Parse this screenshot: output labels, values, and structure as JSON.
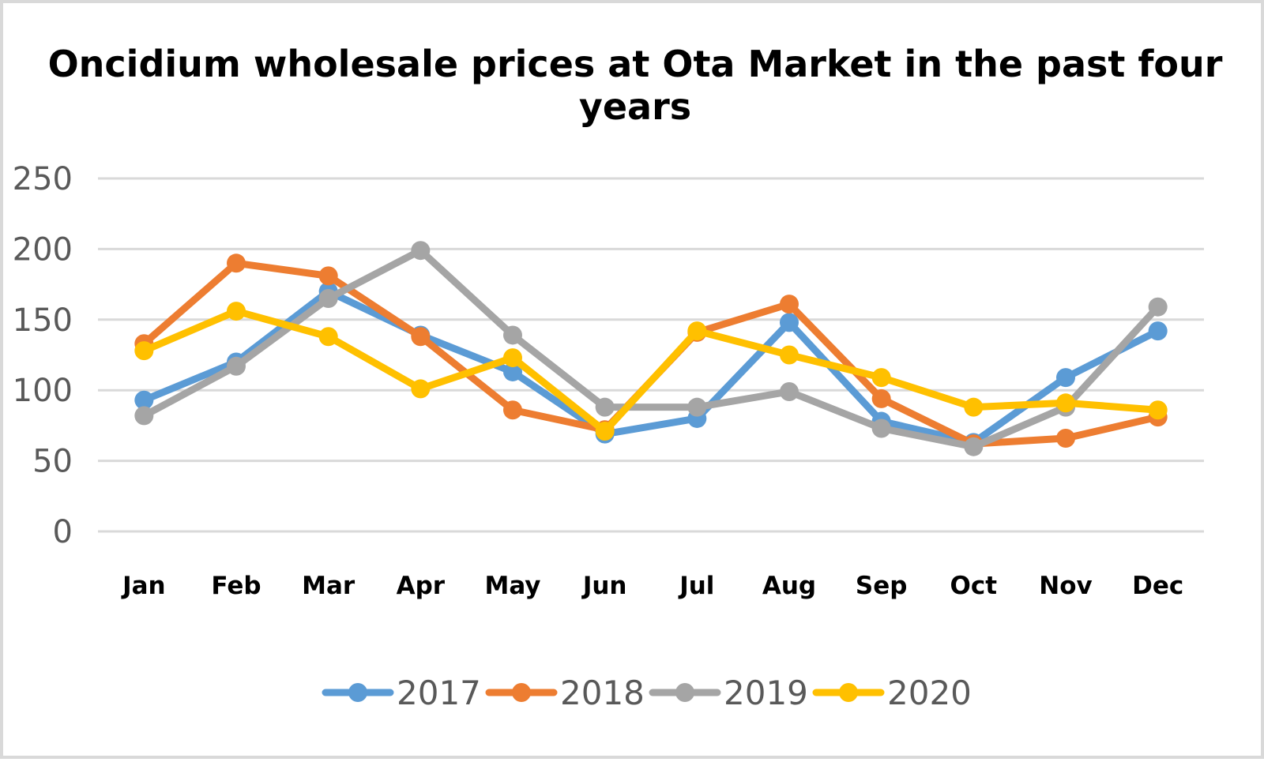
{
  "chart_data": {
    "type": "line",
    "title": "Oncidium wholesale prices at Ota Market in the past four years",
    "xlabel": "",
    "ylabel": "",
    "categories": [
      "Jan",
      "Feb",
      "Mar",
      "Apr",
      "May",
      "Jun",
      "Jul",
      "Aug",
      "Sep",
      "Oct",
      "Nov",
      "Dec"
    ],
    "ylim": [
      0,
      250
    ],
    "yticks": [
      "0",
      "50",
      "100",
      "150",
      "200",
      "250"
    ],
    "grid": "horizontal",
    "legend_position": "bottom",
    "series": [
      {
        "name": "2017",
        "color": "#5b9bd5",
        "values": [
          93,
          120,
          170,
          139,
          113,
          69,
          80,
          148,
          78,
          63,
          109,
          142
        ]
      },
      {
        "name": "2018",
        "color": "#ed7d31",
        "values": [
          133,
          190,
          181,
          138,
          86,
          72,
          141,
          161,
          94,
          62,
          66,
          81
        ]
      },
      {
        "name": "2019",
        "color": "#a5a5a5",
        "values": [
          82,
          117,
          165,
          199,
          139,
          88,
          88,
          99,
          73,
          60,
          88,
          159
        ]
      },
      {
        "name": "2020",
        "color": "#ffc000",
        "values": [
          128,
          156,
          138,
          101,
          123,
          71,
          142,
          125,
          109,
          88,
          91,
          86
        ]
      }
    ]
  }
}
